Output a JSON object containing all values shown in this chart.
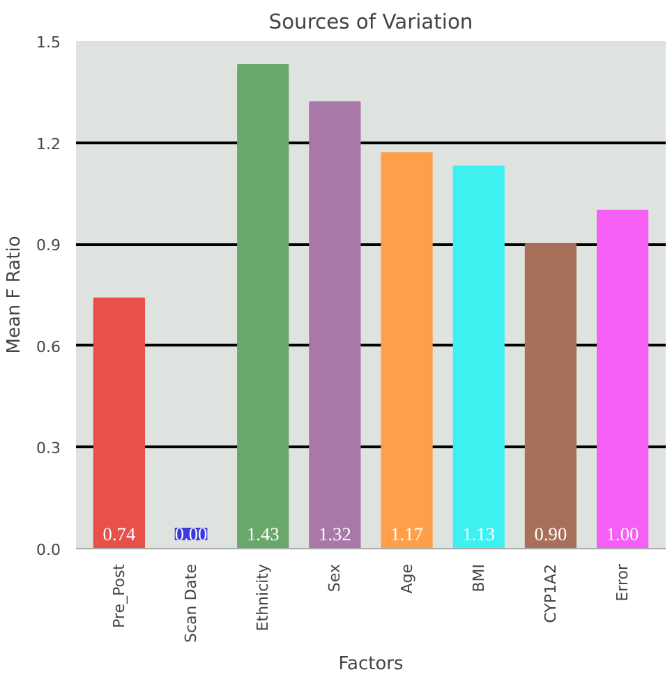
{
  "chart_data": {
    "type": "bar",
    "title": "Sources of Variation",
    "xlabel": "Factors",
    "ylabel": "Mean F Ratio",
    "categories": [
      "Pre_Post",
      "Scan Date",
      "Ethnicity",
      "Sex",
      "Age",
      "BMI",
      "CYP1A2",
      "Error"
    ],
    "values": [
      0.74,
      0.0,
      1.43,
      1.32,
      1.17,
      1.13,
      0.9,
      1.0
    ],
    "colors": [
      "#e8504a",
      "#3b3bdd",
      "#6aa76a",
      "#a978a9",
      "#ff9f4a",
      "#3ef0f0",
      "#a8705a",
      "#f55ff5"
    ],
    "ylim": [
      0,
      1.5
    ],
    "yticks": [
      {
        "value": 0,
        "label": "0.0"
      },
      {
        "value": 0.3,
        "label": "0.3"
      },
      {
        "value": 0.6,
        "label": "0.6"
      },
      {
        "value": 0.9,
        "label": "0.9"
      },
      {
        "value": 1.2,
        "label": "1.2"
      },
      {
        "value": 1.5,
        "label": "1.5"
      }
    ],
    "value_labels": [
      "0.74",
      "0.00",
      "1.43",
      "1.32",
      "1.17",
      "1.13",
      "0.90",
      "1.00"
    ],
    "grid": "y"
  }
}
